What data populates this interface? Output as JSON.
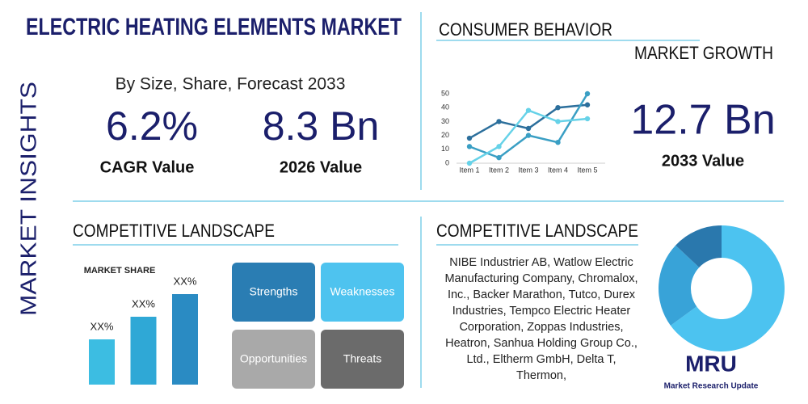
{
  "header": {
    "title": "ELECTRIC HEATING ELEMENTS MARKET",
    "side_label": "MARKET INSIGHTS"
  },
  "summary": {
    "subtitle": "By Size, Share, Forecast 2033",
    "stats": [
      {
        "value": "6.2%",
        "label": "CAGR Value"
      },
      {
        "value": "8.3 Bn",
        "label": "2026 Value"
      }
    ]
  },
  "consumer": {
    "title": "CONSUMER BEHAVIOR",
    "subtitle": "MARKET GROWTH",
    "value": "12.7 Bn",
    "label": "2033 Value"
  },
  "competitive_left": {
    "title": "COMPETITIVE LANDSCAPE",
    "swot": [
      "Strengths",
      "Weaknesses",
      "Opportunities",
      "Threats"
    ]
  },
  "competitive_right": {
    "title": "COMPETITIVE LANDSCAPE",
    "text_lines": [
      "NIBE Industrier AB, Watlow Electric",
      "Manufacturing Company, Chromalox,",
      "Inc., Backer Marathon, Tutco, Durex",
      "Industries, Tempco Electric Heater",
      "Corporation, Zoppas Industries,",
      "Heatron, Sanhua Holding Group Co.,",
      "Ltd., Eltherm GmbH, Delta T,",
      "Thermon,"
    ]
  },
  "logo": {
    "text": "MRU",
    "caption": "Market Research Update"
  },
  "chart_data": [
    {
      "type": "line",
      "categories": [
        "Item 1",
        "Item 2",
        "Item 3",
        "Item 4",
        "Item 5"
      ],
      "ylim": [
        0,
        50
      ],
      "yticks": [
        0,
        10,
        20,
        30,
        40,
        50
      ],
      "series": [
        {
          "color": "#2c6f9c",
          "values": [
            18,
            30,
            25,
            40,
            42
          ]
        },
        {
          "color": "#3a9fc4",
          "values": [
            12,
            4,
            20,
            15,
            50
          ]
        },
        {
          "color": "#66d2e8",
          "values": [
            0,
            12,
            38,
            30,
            32
          ]
        }
      ]
    },
    {
      "type": "bar",
      "title": "MARKET SHARE",
      "values": [
        2,
        3,
        4
      ],
      "value_labels": [
        "XX%",
        "XX%",
        "XX%"
      ],
      "colors": [
        "#3cbde2",
        "#2fa8d6",
        "#2a8bc3"
      ]
    },
    {
      "type": "pie",
      "values": [
        65,
        22,
        13
      ],
      "colors": [
        "#4cc3f0",
        "#38a3d8",
        "#2a78ad"
      ],
      "hole": true
    }
  ]
}
